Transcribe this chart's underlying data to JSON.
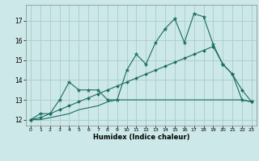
{
  "title": "",
  "xlabel": "Humidex (Indice chaleur)",
  "ylabel": "",
  "bg_color": "#cce8e8",
  "line_color": "#1a6b60",
  "grid_color": "#aacccc",
  "xlim": [
    -0.5,
    23.5
  ],
  "ylim": [
    11.7,
    17.8
  ],
  "xticks": [
    0,
    1,
    2,
    3,
    4,
    5,
    6,
    7,
    8,
    9,
    10,
    11,
    12,
    13,
    14,
    15,
    16,
    17,
    18,
    19,
    20,
    21,
    22,
    23
  ],
  "yticks": [
    12,
    13,
    14,
    15,
    16,
    17
  ],
  "line1_x": [
    0,
    1,
    2,
    3,
    4,
    5,
    6,
    7,
    8,
    9,
    10,
    11,
    12,
    13,
    14,
    15,
    16,
    17,
    18,
    19,
    20,
    21,
    22,
    23
  ],
  "line1_y": [
    12.0,
    12.3,
    12.3,
    13.0,
    13.9,
    13.5,
    13.5,
    13.5,
    13.0,
    13.0,
    14.5,
    15.3,
    14.8,
    15.9,
    16.6,
    17.1,
    15.9,
    17.35,
    17.2,
    15.8,
    14.8,
    14.3,
    13.0,
    12.9
  ],
  "line2_x": [
    0,
    1,
    2,
    3,
    4,
    5,
    6,
    7,
    8,
    9,
    10,
    11,
    12,
    13,
    14,
    15,
    16,
    17,
    18,
    19,
    20,
    21,
    22,
    23
  ],
  "line2_y": [
    12.0,
    12.1,
    12.3,
    12.5,
    12.7,
    12.9,
    13.1,
    13.3,
    13.5,
    13.7,
    13.9,
    14.1,
    14.3,
    14.5,
    14.7,
    14.9,
    15.1,
    15.3,
    15.5,
    15.7,
    14.8,
    14.3,
    13.5,
    12.9
  ],
  "line3_x": [
    0,
    1,
    2,
    3,
    4,
    5,
    6,
    7,
    8,
    9,
    10,
    11,
    12,
    13,
    14,
    15,
    16,
    17,
    18,
    19,
    20,
    21,
    22,
    23
  ],
  "line3_y": [
    12.0,
    12.0,
    12.1,
    12.2,
    12.3,
    12.5,
    12.6,
    12.7,
    12.9,
    13.0,
    13.0,
    13.0,
    13.0,
    13.0,
    13.0,
    13.0,
    13.0,
    13.0,
    13.0,
    13.0,
    13.0,
    13.0,
    13.0,
    12.9
  ]
}
